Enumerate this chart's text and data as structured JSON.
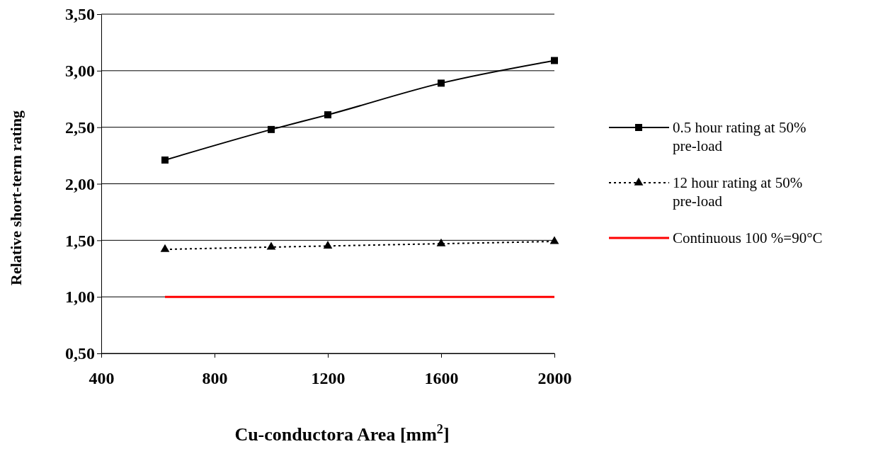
{
  "chart_data": {
    "type": "line",
    "xlabel": "Cu-conductora Area [mm$^{2}$]",
    "ylabel": "Relative short-term rating",
    "xlim": [
      400,
      2000
    ],
    "xticks": [
      400,
      800,
      1200,
      1600,
      2000
    ],
    "ylim": [
      0.5,
      3.5
    ],
    "yticks": [
      {
        "value": 0.5,
        "label": "0,50"
      },
      {
        "value": 1,
        "label": "1,00"
      },
      {
        "value": 1.5,
        "label": "1,50"
      },
      {
        "value": 2,
        "label": "2,00"
      },
      {
        "value": 2.5,
        "label": "2,50"
      },
      {
        "value": 3,
        "label": "3,00"
      },
      {
        "value": 3.5,
        "label": "3,50"
      }
    ],
    "grid": "y",
    "legend": "right",
    "series": [
      {
        "name": "0.5 hour rating at 50% pre-load",
        "color": "#000000",
        "x": [
          625,
          1000,
          1200,
          1600,
          2000
        ],
        "values": [
          2.21,
          2.48,
          2.61,
          2.89,
          3.09
        ],
        "marker": "square",
        "line_style": "solid"
      },
      {
        "name": "12 hour rating at 50% pre-load",
        "color": "#000000",
        "x": [
          625,
          1000,
          1200,
          1600,
          2000
        ],
        "values": [
          1.42,
          1.44,
          1.45,
          1.47,
          1.49
        ],
        "marker": "triangle",
        "line_style": "dotted"
      },
      {
        "name": "Continuous 100 %=90°C",
        "color": "#ff0000",
        "x": [
          625,
          2000
        ],
        "values": [
          1,
          1
        ],
        "marker": "none",
        "line_style": "solid"
      }
    ]
  }
}
